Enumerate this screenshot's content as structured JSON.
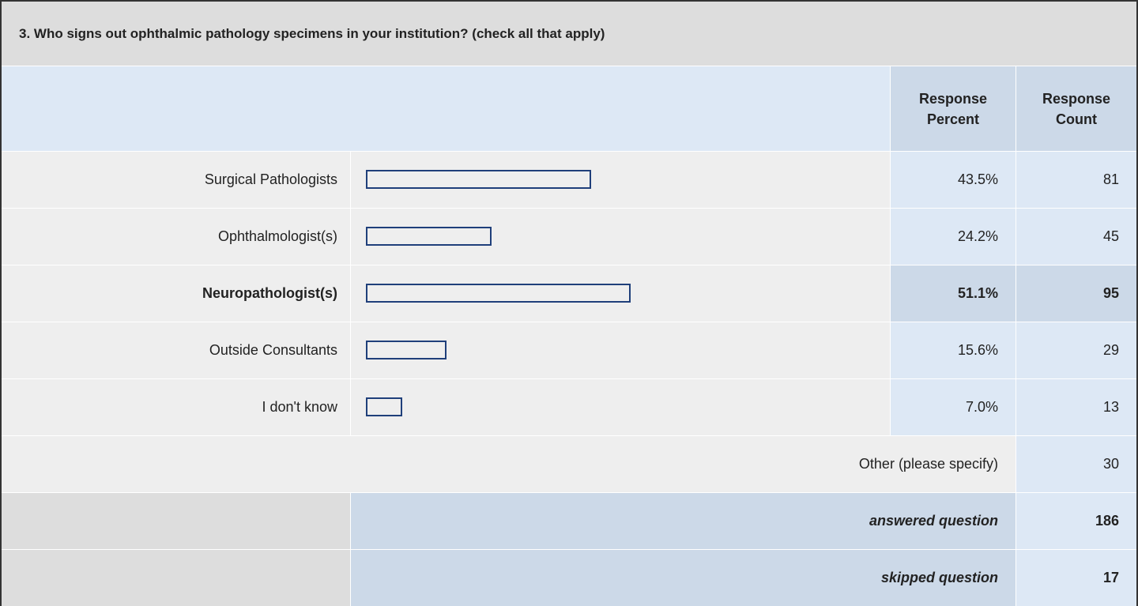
{
  "title": "3. Who signs out ophthalmic pathology specimens in your institution? (check all that apply)",
  "header": {
    "percent": "Response Percent",
    "count": "Response Count"
  },
  "rows": [
    {
      "label": "Surgical Pathologists",
      "percent": 43.5,
      "percent_label": "43.5%",
      "count": 81
    },
    {
      "label": "Ophthalmologist(s)",
      "percent": 24.2,
      "percent_label": "24.2%",
      "count": 45
    },
    {
      "label": "Neuropathologist(s)",
      "percent": 51.1,
      "percent_label": "51.1%",
      "count": 95,
      "highlight": true
    },
    {
      "label": "Outside Consultants",
      "percent": 15.6,
      "percent_label": "15.6%",
      "count": 29
    },
    {
      "label": "I don't know",
      "percent": 7.0,
      "percent_label": "7.0%",
      "count": 13
    }
  ],
  "other": {
    "label": "Other (please specify)",
    "count": 30
  },
  "answered": {
    "label": "answered question",
    "count": 186
  },
  "skipped": {
    "label": "skipped question",
    "count": 17
  }
}
